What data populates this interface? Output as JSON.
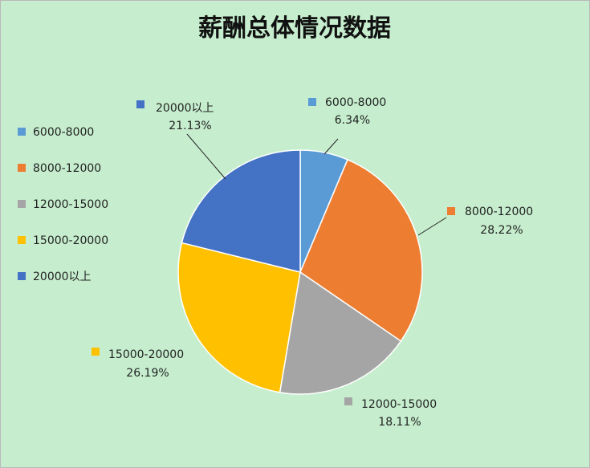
{
  "chart_data": {
    "type": "pie",
    "title": "薪酬总体情况数据",
    "categories": [
      "6000-8000",
      "8000-12000",
      "12000-15000",
      "15000-20000",
      "20000以上"
    ],
    "values": [
      6.34,
      28.22,
      18.11,
      26.19,
      21.13
    ],
    "value_labels": [
      "6.34%",
      "28.22%",
      "18.11%",
      "26.19%",
      "21.13%"
    ],
    "colors": [
      "#5b9bd5",
      "#ed7d31",
      "#a5a5a5",
      "#ffc000",
      "#4472c4"
    ],
    "legend": "left",
    "start_angle": "12 o'clock",
    "direction": "clockwise"
  }
}
